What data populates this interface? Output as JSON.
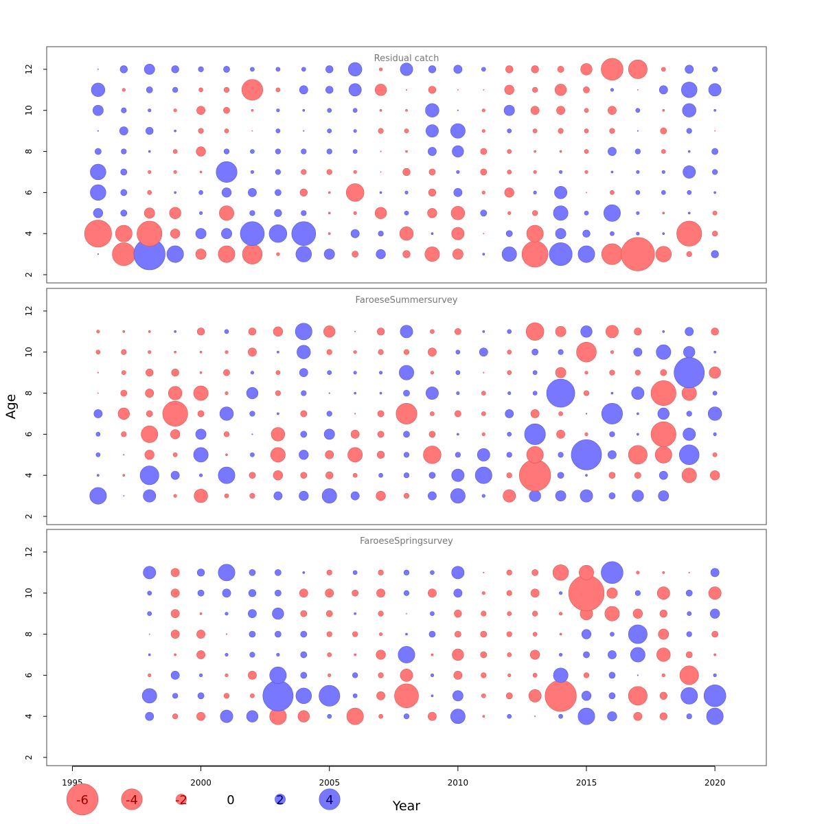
{
  "chart_data": {
    "type": "scatter",
    "encoding": "bubble",
    "xlabel": "Year",
    "ylabel": "Age",
    "xlim": [
      1994,
      2022
    ],
    "ylim": [
      1.6,
      13.1
    ],
    "x_ticks": [
      1995,
      2000,
      2005,
      2010,
      2015,
      2020
    ],
    "y_ticks": [
      2,
      4,
      6,
      8,
      10,
      12
    ],
    "colors": {
      "positive": "#7777ff",
      "negative": "#ff7777",
      "positive_edge": "#5555dd",
      "negative_edge": "#dd5555"
    },
    "legend": {
      "placement": "bottom-left",
      "values": [
        -6,
        -4,
        -2,
        0,
        2,
        4
      ],
      "labels": [
        "-6",
        "-4",
        "-2",
        "0",
        "2",
        "4"
      ]
    },
    "panels": [
      {
        "title": "Residual catch",
        "years": [
          1996,
          1997,
          1998,
          1999,
          2000,
          2001,
          2002,
          2003,
          2004,
          2005,
          2006,
          2007,
          2008,
          2009,
          2010,
          2011,
          2012,
          2013,
          2014,
          2015,
          2016,
          2017,
          2018,
          2019,
          2020
        ],
        "ages": [
          3,
          4,
          5,
          6,
          7,
          8,
          9,
          10,
          11,
          12
        ],
        "residuals": [
          [
            0.1,
            -2.2,
            3.0,
            1.6,
            -1.0,
            -1.6,
            -1.9,
            -0.3,
            1.5,
            1.0,
            -0.6,
            0.9,
            -0.7,
            -1.4,
            -1.0,
            0.2,
            1.4,
            -2.5,
            2.2,
            1.6,
            -2.0,
            -3.2,
            -1.5,
            -0.5,
            0.7
          ],
          [
            -2.6,
            -1.6,
            -2.4,
            -0.9,
            1.0,
            1.0,
            2.3,
            1.7,
            2.3,
            -0.2,
            0.8,
            0.5,
            -1.3,
            0.2,
            -1.2,
            -0.05,
            0.6,
            -1.6,
            1.0,
            0.7,
            0.4,
            0.3,
            0.2,
            -2.4,
            -0.5
          ],
          [
            0.9,
            0.6,
            -1.0,
            -1.1,
            0.3,
            -1.4,
            0.5,
            0.7,
            0.5,
            -0.2,
            -0.3,
            -1.1,
            0.4,
            -0.9,
            -1.3,
            0.6,
            -0.3,
            -0.5,
            1.4,
            0.4,
            1.6,
            0.3,
            -0.2,
            0.2,
            -0.4
          ],
          [
            1.5,
            0.6,
            -0.4,
            0.2,
            0.4,
            0.9,
            0.8,
            0.6,
            -0.7,
            -0.2,
            -1.7,
            0.2,
            0.3,
            -0.7,
            0.8,
            -0.3,
            -0.9,
            0.3,
            1.2,
            -0.05,
            -0.4,
            0.4,
            0.4,
            0.4,
            0.2
          ],
          [
            1.5,
            0.6,
            -0.3,
            -0.3,
            -0.2,
            2.0,
            0.3,
            0.5,
            -0.5,
            -0.5,
            -0.3,
            -0.02,
            -0.7,
            -0.6,
            0.3,
            -0.6,
            -0.4,
            -0.3,
            0.3,
            -0.3,
            0.2,
            0.3,
            0.3,
            1.2,
            0.5
          ],
          [
            0.6,
            0.5,
            0.2,
            -0.4,
            -0.9,
            0.5,
            0.4,
            0.5,
            0.5,
            0.5,
            0.4,
            -0.1,
            -0.2,
            0.8,
            1.1,
            -0.6,
            -0.4,
            -0.2,
            -0.2,
            -0.4,
            0.8,
            0.5,
            -0.4,
            0.2,
            0.6
          ],
          [
            0.1,
            0.8,
            0.7,
            0.2,
            -0.5,
            -0.4,
            -0.05,
            0.4,
            0.1,
            0.4,
            0.3,
            -0.5,
            -0.4,
            1.2,
            1.4,
            -0.3,
            0.4,
            -0.4,
            -0.5,
            -0.4,
            -0.5,
            0.1,
            -0.6,
            0.5,
            -0.05
          ],
          [
            1.0,
            0.5,
            0.3,
            -0.3,
            -0.8,
            -0.6,
            -0.2,
            0.3,
            0.2,
            0.4,
            0.4,
            -0.2,
            -0.2,
            1.3,
            0.1,
            -0.3,
            1.0,
            -0.8,
            -0.8,
            -0.4,
            -0.8,
            0.4,
            -0.2,
            1.3,
            0.2
          ],
          [
            1.3,
            -0.3,
            0.6,
            0.5,
            -0.4,
            -0.5,
            -2.0,
            -0.4,
            0.8,
            0.7,
            1.2,
            -1.1,
            -0.1,
            -0.7,
            -0.05,
            -0.05,
            -0.9,
            -0.5,
            -1.1,
            -0.6,
            0.3,
            -0.05,
            0.8,
            1.5,
            1.2
          ],
          [
            0.05,
            0.7,
            1.0,
            0.7,
            0.5,
            0.6,
            0.4,
            0.4,
            0.4,
            0.7,
            1.3,
            -0.3,
            1.2,
            0.7,
            0.8,
            0.4,
            -0.7,
            -0.7,
            -0.6,
            -1.1,
            -2.1,
            -1.8,
            -0.4,
            0.8,
            0.5
          ]
        ]
      },
      {
        "title": "FaroeseSummersurvey",
        "years": [
          1996,
          1997,
          1998,
          1999,
          2000,
          2001,
          2002,
          2003,
          2004,
          2005,
          2006,
          2007,
          2008,
          2009,
          2010,
          2011,
          2012,
          2013,
          2014,
          2015,
          2016,
          2017,
          2018,
          2019,
          2020
        ],
        "ages": [
          3,
          4,
          5,
          6,
          7,
          8,
          9,
          10,
          11
        ],
        "residuals": [
          [
            1.6,
            0.05,
            1.2,
            -0.3,
            -1.3,
            -0.4,
            -0.5,
            0.8,
            0.9,
            1.4,
            0.8,
            -0.9,
            -0.5,
            0.8,
            1.4,
            0.3,
            -1.2,
            1.1,
            1.0,
            1.2,
            0.6,
            1.1,
            1.0,
            null,
            null
          ],
          [
            0.2,
            -0.2,
            1.8,
            0.8,
            0.3,
            1.6,
            -0.6,
            -0.9,
            -0.6,
            -0.7,
            -0.4,
            0.4,
            0.5,
            0.6,
            1.2,
            1.6,
            -0.5,
            -3.0,
            0.6,
            0.2,
            -0.6,
            -0.6,
            0.8,
            -1.4,
            -0.9
          ],
          [
            0.4,
            0.04,
            -0.9,
            -0.4,
            1.4,
            -0.2,
            0.4,
            -1.4,
            0.9,
            -0.8,
            -1.4,
            -0.7,
            0.5,
            -1.7,
            0.5,
            1.2,
            0.5,
            -1.6,
            0.5,
            2.9,
            0.8,
            -1.8,
            -1.6,
            1.9,
            -0.4
          ],
          [
            0.4,
            -0.5,
            -1.6,
            -0.9,
            1.0,
            -0.5,
            0.1,
            -1.3,
            0.6,
            1.0,
            -0.8,
            -0.6,
            0.6,
            -0.6,
            0.2,
            -0.3,
            0.4,
            2.0,
            -0.8,
            -0.3,
            0.5,
            0.2,
            -2.4,
            1.2,
            0.3
          ],
          [
            0.8,
            -1.1,
            -0.6,
            -2.4,
            -0.6,
            1.3,
            0.5,
            0.2,
            -0.6,
            0.5,
            -0.1,
            -0.6,
            -2.0,
            -0.4,
            -0.6,
            -0.4,
            0.8,
            -0.8,
            -0.4,
            0.1,
            2.0,
            0.2,
            1.1,
            0.5,
            1.3
          ],
          [
            -0.05,
            -0.6,
            -0.8,
            -1.3,
            -1.4,
            -0.3,
            1.1,
            -0.5,
            0.5,
            0.1,
            0.2,
            0.2,
            0.6,
            1.2,
            0.3,
            -0.4,
            0.3,
            0.4,
            2.7,
            -0.5,
            0.2,
            1.2,
            -2.4,
            -1.4,
            0.4
          ],
          [
            -0.1,
            -0.4,
            -0.7,
            -0.7,
            -0.2,
            -0.6,
            0.3,
            -0.4,
            0.8,
            0.4,
            0.3,
            0.3,
            1.4,
            -0.3,
            0.4,
            -0.1,
            -0.4,
            0.4,
            -1.0,
            -0.3,
            -0.5,
            -0.5,
            -0.6,
            2.9,
            -1.1
          ],
          [
            -0.4,
            -0.5,
            -0.3,
            -0.2,
            -0.2,
            -0.3,
            -0.8,
            0.2,
            1.3,
            -0.5,
            -0.3,
            -0.5,
            -0.5,
            -0.8,
            0.4,
            0.8,
            -0.4,
            0.6,
            0.5,
            -1.9,
            -0.3,
            0.8,
            1.4,
            1.1,
            0.2
          ],
          [
            -0.3,
            -0.2,
            -0.2,
            0.2,
            -0.7,
            0.4,
            -0.7,
            -0.9,
            1.6,
            -1.1,
            0.03,
            -0.7,
            1.2,
            -0.4,
            -0.6,
            0.2,
            0.4,
            -1.7,
            -1.0,
            1.1,
            -1.2,
            -0.7,
            0.2,
            0.8,
            -0.7
          ]
        ]
      },
      {
        "title": "FaroeseSpringsurvey",
        "years": [
          1998,
          1999,
          2000,
          2001,
          2002,
          2003,
          2004,
          2005,
          2006,
          2007,
          2008,
          2009,
          2010,
          2011,
          2012,
          2013,
          2014,
          2015,
          2016,
          2017,
          2018,
          2019,
          2020
        ],
        "ages": [
          4,
          5,
          6,
          7,
          8,
          9,
          10,
          11
        ],
        "residuals": [
          [
            0.8,
            -0.5,
            -0.8,
            1.2,
            1.1,
            -1.6,
            -1.1,
            0.4,
            -1.6,
            -0.4,
            0.5,
            -0.8,
            1.4,
            -0.2,
            0.4,
            -0.1,
            0.4,
            1.6,
            0.9,
            -0.8,
            -0.7,
            0.5,
            1.6
          ],
          [
            1.4,
            0.5,
            0.6,
            -0.5,
            -0.4,
            2.9,
            1.5,
            2.0,
            0.4,
            -0.8,
            -2.3,
            0.2,
            1.0,
            -0.4,
            -0.6,
            -1.2,
            -3.0,
            0.9,
            0.6,
            -1.8,
            -0.7,
            1.6,
            2.1
          ],
          [
            -0.3,
            0.8,
            0.3,
            -0.3,
            -0.8,
            1.6,
            0.6,
            -0.3,
            0.5,
            -0.5,
            -1.2,
            0.3,
            -0.8,
            -0.5,
            -0.3,
            -0.4,
            1.4,
            -0.5,
            0.6,
            0.1,
            -0.3,
            -1.8,
            0.3
          ],
          [
            0.2,
            -0.2,
            -0.8,
            0.3,
            0.5,
            0.3,
            0.6,
            -0.4,
            -0.2,
            -0.9,
            1.6,
            -0.2,
            -1.1,
            -0.6,
            -0.4,
            -0.9,
            0.3,
            0.6,
            0.8,
            1.4,
            -1.3,
            -0.6,
            -0.2
          ],
          [
            -0.05,
            -0.8,
            -0.8,
            -0.1,
            0.6,
            0.6,
            0.6,
            -0.5,
            -0.5,
            -0.3,
            0.2,
            0.6,
            -0.6,
            -0.6,
            -0.5,
            -0.4,
            -0.2,
            0.9,
            0.4,
            1.8,
            -1.0,
            0.5,
            -0.6
          ],
          [
            0.4,
            -0.8,
            -0.2,
            0.3,
            0.8,
            1.1,
            -0.6,
            -0.6,
            0.2,
            -0.5,
            -0.02,
            0.4,
            -0.7,
            -0.5,
            -0.4,
            -0.5,
            -0.3,
            -1.2,
            -1.4,
            -0.9,
            -0.7,
            0.4,
            0.9
          ],
          [
            0.4,
            -0.8,
            0.6,
            0.8,
            0.7,
            0.6,
            -0.8,
            -0.8,
            -0.6,
            -0.8,
            0.5,
            -0.8,
            0.8,
            -0.3,
            -0.5,
            -0.8,
            0.3,
            -3.4,
            -1.0,
            0.5,
            -1.2,
            0.6,
            -1.2
          ],
          [
            1.2,
            -0.8,
            0.7,
            1.6,
            0.6,
            0.6,
            0.2,
            -0.5,
            0.4,
            -0.5,
            0.5,
            0.4,
            1.2,
            -0.1,
            -0.5,
            -0.6,
            -1.5,
            -1.4,
            2.1,
            -0.3,
            -0.2,
            -0.1,
            0.8
          ]
        ]
      }
    ]
  }
}
